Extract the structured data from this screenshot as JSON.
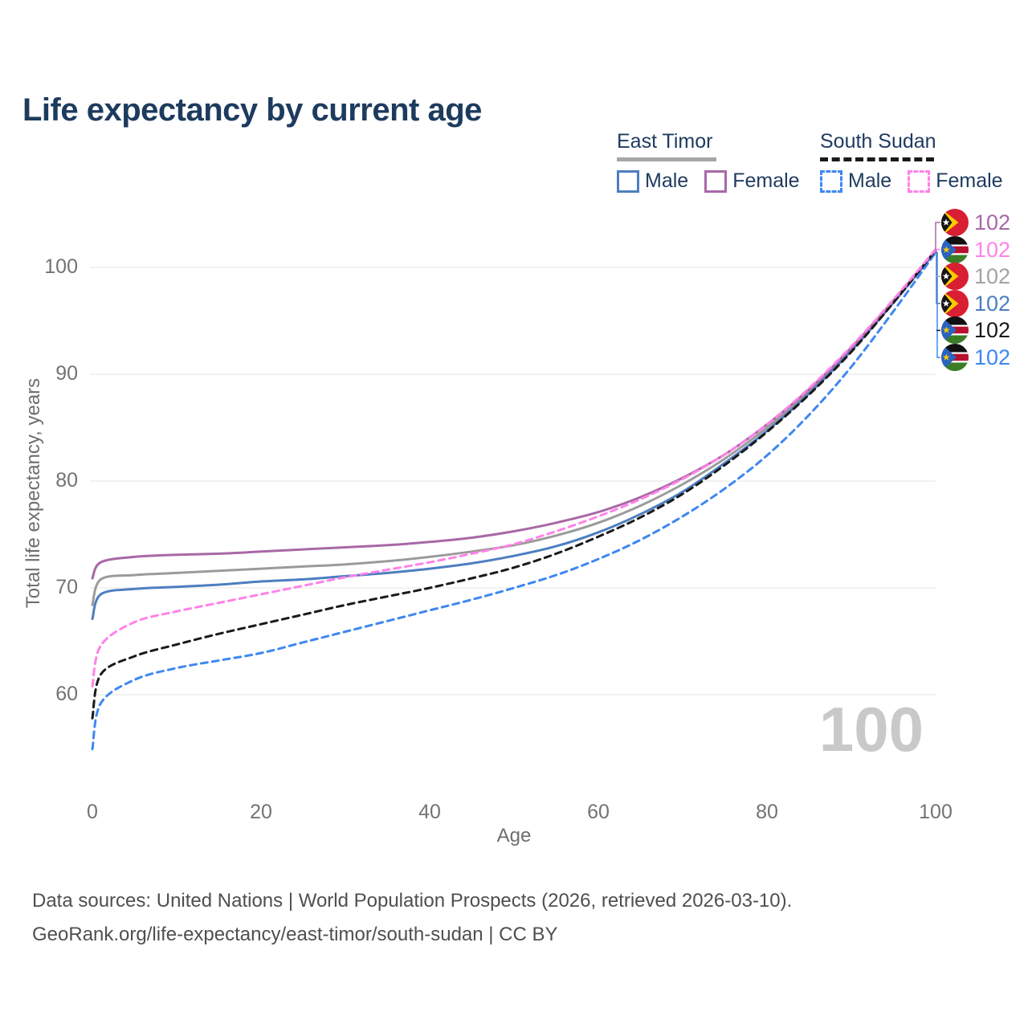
{
  "title": "Life expectancy by current age",
  "legend": {
    "groups": [
      {
        "label": "East Timor",
        "line_style": "solid",
        "underline_color": "#a6a6a6",
        "items": [
          {
            "label": "Male",
            "color": "#4d7ec0"
          },
          {
            "label": "Female",
            "color": "#a868a6"
          }
        ]
      },
      {
        "label": "South Sudan",
        "line_style": "dashed",
        "underline_color": "#1a1a1a",
        "items": [
          {
            "label": "Male",
            "color": "#3e87f2"
          },
          {
            "label": "Female",
            "color": "#ff82e9"
          }
        ]
      }
    ]
  },
  "watermark": "100",
  "caption": {
    "line1": "Data sources: United Nations | World Population Prospects (2026, retrieved 2026-03-10).",
    "line2": "GeoRank.org/life-expectancy/east-timor/south-sudan | CC BY"
  },
  "chart_data": {
    "type": "line",
    "title": "Life expectancy by current age",
    "xlabel": "Age",
    "ylabel": "Total life expectancy, years",
    "xlim": [
      0,
      100
    ],
    "ylim": [
      54,
      104
    ],
    "x_ticks": [
      0,
      20,
      40,
      60,
      80,
      100
    ],
    "y_ticks": [
      60,
      70,
      80,
      90,
      100
    ],
    "grid": "horizontal-only",
    "legend_position": "top-right",
    "series": [
      {
        "name": "East Timor (both sexes)",
        "country": "East Timor",
        "sex": "Both",
        "style": "solid",
        "color": "#9b9b9b",
        "points": [
          [
            0,
            68.4
          ],
          [
            1,
            70.8
          ],
          [
            5,
            71.2
          ],
          [
            10,
            71.4
          ],
          [
            15,
            71.6
          ],
          [
            20,
            71.8
          ],
          [
            25,
            72.0
          ],
          [
            30,
            72.2
          ],
          [
            35,
            72.5
          ],
          [
            40,
            72.9
          ],
          [
            45,
            73.4
          ],
          [
            50,
            74.0
          ],
          [
            55,
            74.9
          ],
          [
            60,
            76.1
          ],
          [
            65,
            77.7
          ],
          [
            70,
            79.7
          ],
          [
            75,
            82.1
          ],
          [
            80,
            85.0
          ],
          [
            85,
            88.4
          ],
          [
            90,
            92.4
          ],
          [
            95,
            96.8
          ],
          [
            100,
            101.6
          ]
        ]
      },
      {
        "name": "East Timor Male",
        "country": "East Timor",
        "sex": "Male",
        "style": "solid",
        "color": "#4d7ec0",
        "points": [
          [
            0,
            67.1
          ],
          [
            1,
            69.4
          ],
          [
            5,
            69.9
          ],
          [
            10,
            70.1
          ],
          [
            15,
            70.3
          ],
          [
            20,
            70.6
          ],
          [
            25,
            70.8
          ],
          [
            30,
            71.1
          ],
          [
            35,
            71.4
          ],
          [
            40,
            71.8
          ],
          [
            45,
            72.3
          ],
          [
            50,
            73.0
          ],
          [
            55,
            73.9
          ],
          [
            60,
            75.2
          ],
          [
            65,
            76.9
          ],
          [
            70,
            79.0
          ],
          [
            75,
            81.7
          ],
          [
            80,
            84.7
          ],
          [
            85,
            88.2
          ],
          [
            90,
            92.2
          ],
          [
            95,
            96.7
          ],
          [
            100,
            101.5
          ]
        ]
      },
      {
        "name": "East Timor Female",
        "country": "East Timor",
        "sex": "Female",
        "style": "solid",
        "color": "#a868a6",
        "points": [
          [
            0,
            70.9
          ],
          [
            1,
            72.4
          ],
          [
            5,
            72.9
          ],
          [
            10,
            73.1
          ],
          [
            15,
            73.2
          ],
          [
            20,
            73.4
          ],
          [
            25,
            73.6
          ],
          [
            30,
            73.8
          ],
          [
            35,
            74.0
          ],
          [
            40,
            74.3
          ],
          [
            45,
            74.7
          ],
          [
            50,
            75.3
          ],
          [
            55,
            76.1
          ],
          [
            60,
            77.1
          ],
          [
            65,
            78.5
          ],
          [
            70,
            80.3
          ],
          [
            75,
            82.5
          ],
          [
            80,
            85.3
          ],
          [
            85,
            88.6
          ],
          [
            90,
            92.5
          ],
          [
            95,
            96.9
          ],
          [
            100,
            101.6
          ]
        ]
      },
      {
        "name": "South Sudan Male",
        "country": "South Sudan",
        "sex": "Male",
        "style": "dashed",
        "color": "#3e87f2",
        "points": [
          [
            0,
            54.9
          ],
          [
            1,
            59.2
          ],
          [
            5,
            61.4
          ],
          [
            10,
            62.5
          ],
          [
            15,
            63.2
          ],
          [
            20,
            63.9
          ],
          [
            25,
            64.9
          ],
          [
            30,
            65.9
          ],
          [
            35,
            66.9
          ],
          [
            40,
            67.9
          ],
          [
            45,
            68.9
          ],
          [
            50,
            70.0
          ],
          [
            55,
            71.2
          ],
          [
            60,
            72.7
          ],
          [
            65,
            74.5
          ],
          [
            70,
            76.7
          ],
          [
            75,
            79.3
          ],
          [
            80,
            82.4
          ],
          [
            85,
            86.2
          ],
          [
            90,
            90.7
          ],
          [
            95,
            95.9
          ],
          [
            100,
            101.4
          ]
        ]
      },
      {
        "name": "South Sudan (both sexes)",
        "country": "South Sudan",
        "sex": "Both",
        "style": "dashed",
        "color": "#1a1a1a",
        "points": [
          [
            0,
            57.8
          ],
          [
            1,
            61.9
          ],
          [
            5,
            63.6
          ],
          [
            10,
            64.7
          ],
          [
            15,
            65.7
          ],
          [
            20,
            66.6
          ],
          [
            25,
            67.5
          ],
          [
            30,
            68.4
          ],
          [
            35,
            69.2
          ],
          [
            40,
            70.0
          ],
          [
            45,
            70.9
          ],
          [
            50,
            71.9
          ],
          [
            55,
            73.2
          ],
          [
            60,
            74.8
          ],
          [
            65,
            76.6
          ],
          [
            70,
            78.8
          ],
          [
            75,
            81.5
          ],
          [
            80,
            84.6
          ],
          [
            85,
            88.1
          ],
          [
            90,
            92.1
          ],
          [
            95,
            96.7
          ],
          [
            100,
            101.6
          ]
        ]
      },
      {
        "name": "South Sudan Female",
        "country": "South Sudan",
        "sex": "Female",
        "style": "dashed",
        "color": "#ff82e9",
        "points": [
          [
            0,
            60.8
          ],
          [
            1,
            64.6
          ],
          [
            5,
            66.8
          ],
          [
            10,
            67.8
          ],
          [
            15,
            68.6
          ],
          [
            20,
            69.4
          ],
          [
            25,
            70.2
          ],
          [
            30,
            71.0
          ],
          [
            35,
            71.7
          ],
          [
            40,
            72.4
          ],
          [
            45,
            73.2
          ],
          [
            50,
            74.1
          ],
          [
            55,
            75.3
          ],
          [
            60,
            76.7
          ],
          [
            65,
            78.3
          ],
          [
            70,
            80.2
          ],
          [
            75,
            82.5
          ],
          [
            80,
            85.3
          ],
          [
            85,
            88.7
          ],
          [
            90,
            92.6
          ],
          [
            95,
            97.0
          ],
          [
            100,
            101.7
          ]
        ]
      }
    ],
    "end_labels": [
      {
        "country": "East Timor",
        "sex": "Female",
        "value": "102",
        "color": "#a868a6"
      },
      {
        "country": "South Sudan",
        "sex": "Female",
        "value": "102",
        "color": "#ff82e9"
      },
      {
        "country": "East Timor",
        "sex": "Both",
        "value": "102",
        "color": "#a3a3a3"
      },
      {
        "country": "East Timor",
        "sex": "Male",
        "value": "102",
        "color": "#4d7ec0"
      },
      {
        "country": "South Sudan",
        "sex": "Both",
        "value": "102",
        "color": "#1a1a1a"
      },
      {
        "country": "South Sudan",
        "sex": "Male",
        "value": "102",
        "color": "#3e87f2"
      }
    ]
  }
}
